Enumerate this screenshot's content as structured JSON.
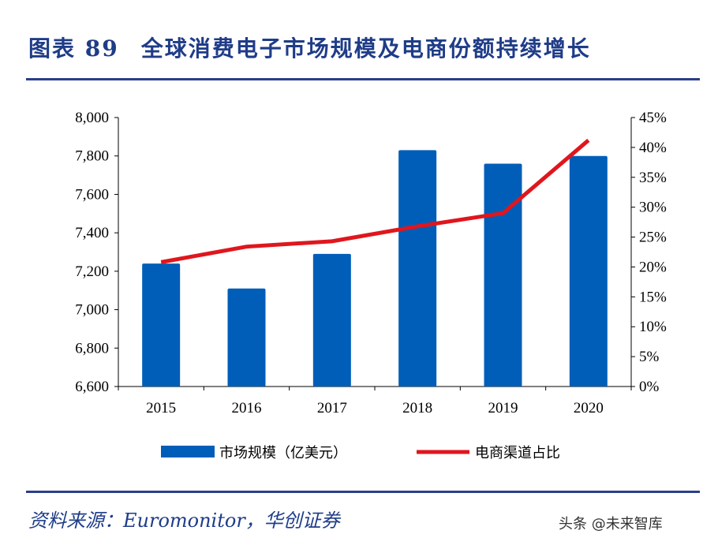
{
  "header": {
    "label": "图表",
    "number": "89",
    "title": "全球消费电子市场规模及电商份额持续增长"
  },
  "footer": {
    "source": "资料来源：Euromonitor，华创证券",
    "watermark": "头条 @未来智库"
  },
  "chart_data": {
    "type": "bar+line",
    "categories": [
      "2015",
      "2016",
      "2017",
      "2018",
      "2019",
      "2020"
    ],
    "series": [
      {
        "name": "市场规模（亿美元）",
        "type": "bar",
        "axis": "left",
        "color": "#005eb8",
        "values": [
          7240,
          7110,
          7290,
          7830,
          7760,
          7800
        ]
      },
      {
        "name": "电商渠道占比",
        "type": "line",
        "axis": "right",
        "color": "#e0161d",
        "values": [
          20.8,
          23.4,
          24.3,
          26.8,
          29.0,
          41.2
        ]
      }
    ],
    "left_axis": {
      "range": [
        6600,
        8000
      ],
      "ticks": [
        "6,600",
        "6,800",
        "7,000",
        "7,200",
        "7,400",
        "7,600",
        "7,800",
        "8,000"
      ]
    },
    "right_axis": {
      "range": [
        0,
        45
      ],
      "ticks": [
        "0%",
        "5%",
        "10%",
        "15%",
        "20%",
        "25%",
        "30%",
        "35%",
        "40%",
        "45%"
      ]
    },
    "legend": "bottom",
    "grid": false
  }
}
